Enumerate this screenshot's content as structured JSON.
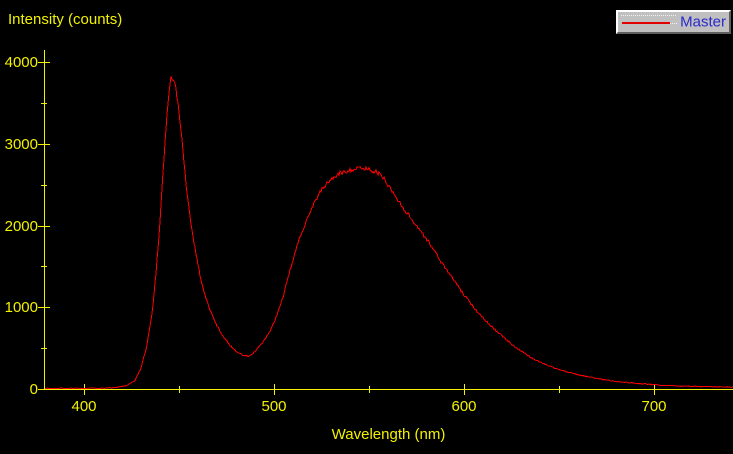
{
  "title": "Intensity (counts)",
  "legend": {
    "series": [
      {
        "label": "Master",
        "color": "#e00000"
      }
    ],
    "position": "top-right"
  },
  "colors": {
    "background": "#000000",
    "axis": "#f2f200",
    "text": "#f2f200",
    "curve": "#ff0000",
    "legend_bg": "#c0c0c0",
    "legend_text": "#2929cc"
  },
  "chart_data": {
    "type": "line",
    "title": "Intensity (counts)",
    "xlabel": "Wavelength (nm)",
    "ylabel": "Intensity (counts)",
    "grid": false,
    "legend_position": "top-right",
    "xlim": [
      379,
      742
    ],
    "ylim": [
      0,
      4100
    ],
    "x_ticks_major": [
      400,
      500,
      600,
      700
    ],
    "x_ticks_minor": [
      450,
      550,
      650
    ],
    "y_ticks_major": [
      0,
      1000,
      2000,
      3000,
      4000
    ],
    "y_ticks_minor": [
      500,
      1500,
      2500,
      3500
    ],
    "series": [
      {
        "name": "Master",
        "color": "#ff0000",
        "points": [
          [
            379,
            8
          ],
          [
            395,
            9
          ],
          [
            405,
            10
          ],
          [
            412,
            13
          ],
          [
            418,
            22
          ],
          [
            423,
            45
          ],
          [
            427,
            110
          ],
          [
            430,
            260
          ],
          [
            433,
            520
          ],
          [
            436,
            950
          ],
          [
            438,
            1450
          ],
          [
            440,
            2050
          ],
          [
            442,
            2800
          ],
          [
            444,
            3450
          ],
          [
            445,
            3700
          ],
          [
            446,
            3820
          ],
          [
            447,
            3800
          ],
          [
            448,
            3720
          ],
          [
            449,
            3550
          ],
          [
            450,
            3400
          ],
          [
            451,
            3150
          ],
          [
            452,
            2950
          ],
          [
            453,
            2700
          ],
          [
            454,
            2450
          ],
          [
            455,
            2250
          ],
          [
            457,
            1920
          ],
          [
            459,
            1650
          ],
          [
            461,
            1400
          ],
          [
            463,
            1200
          ],
          [
            465,
            1050
          ],
          [
            467,
            930
          ],
          [
            469,
            820
          ],
          [
            471,
            730
          ],
          [
            474,
            620
          ],
          [
            477,
            530
          ],
          [
            480,
            465
          ],
          [
            483,
            420
          ],
          [
            485,
            405
          ],
          [
            487,
            403
          ],
          [
            489,
            435
          ],
          [
            491,
            485
          ],
          [
            493,
            540
          ],
          [
            495,
            600
          ],
          [
            497,
            670
          ],
          [
            499,
            760
          ],
          [
            501,
            870
          ],
          [
            503,
            1000
          ],
          [
            505,
            1150
          ],
          [
            507,
            1320
          ],
          [
            509,
            1500
          ],
          [
            511,
            1660
          ],
          [
            513,
            1810
          ],
          [
            515,
            1940
          ],
          [
            517,
            2060
          ],
          [
            519,
            2170
          ],
          [
            521,
            2270
          ],
          [
            523,
            2360
          ],
          [
            525,
            2430
          ],
          [
            527,
            2490
          ],
          [
            529,
            2540
          ],
          [
            531,
            2580
          ],
          [
            533,
            2615
          ],
          [
            535,
            2640
          ],
          [
            538,
            2665
          ],
          [
            541,
            2685
          ],
          [
            544,
            2695
          ],
          [
            547,
            2700
          ],
          [
            550,
            2690
          ],
          [
            553,
            2665
          ],
          [
            556,
            2620
          ],
          [
            559,
            2540
          ],
          [
            561,
            2460
          ],
          [
            563,
            2390
          ],
          [
            565,
            2320
          ],
          [
            567,
            2250
          ],
          [
            569,
            2185
          ],
          [
            571,
            2120
          ],
          [
            573,
            2060
          ],
          [
            575,
            2000
          ],
          [
            577,
            1940
          ],
          [
            579,
            1875
          ],
          [
            581,
            1810
          ],
          [
            583,
            1740
          ],
          [
            585,
            1670
          ],
          [
            587,
            1590
          ],
          [
            589,
            1520
          ],
          [
            591,
            1450
          ],
          [
            593,
            1390
          ],
          [
            595,
            1320
          ],
          [
            597,
            1250
          ],
          [
            599,
            1180
          ],
          [
            601,
            1120
          ],
          [
            603,
            1060
          ],
          [
            605,
            1000
          ],
          [
            607,
            950
          ],
          [
            609,
            900
          ],
          [
            611,
            850
          ],
          [
            613,
            800
          ],
          [
            615,
            755
          ],
          [
            617,
            710
          ],
          [
            619,
            670
          ],
          [
            621,
            630
          ],
          [
            623,
            590
          ],
          [
            625,
            550
          ],
          [
            627,
            515
          ],
          [
            629,
            480
          ],
          [
            631,
            450
          ],
          [
            633,
            420
          ],
          [
            635,
            390
          ],
          [
            637,
            365
          ],
          [
            639,
            340
          ],
          [
            641,
            320
          ],
          [
            643,
            300
          ],
          [
            645,
            280
          ],
          [
            648,
            255
          ],
          [
            651,
            232
          ],
          [
            654,
            210
          ],
          [
            657,
            192
          ],
          [
            660,
            175
          ],
          [
            663,
            160
          ],
          [
            666,
            146
          ],
          [
            669,
            133
          ],
          [
            672,
            121
          ],
          [
            675,
            110
          ],
          [
            678,
            100
          ],
          [
            681,
            92
          ],
          [
            684,
            84
          ],
          [
            687,
            77
          ],
          [
            690,
            71
          ],
          [
            694,
            63
          ],
          [
            698,
            56
          ],
          [
            702,
            50
          ],
          [
            706,
            45
          ],
          [
            710,
            41
          ],
          [
            715,
            36
          ],
          [
            720,
            32
          ],
          [
            725,
            29
          ],
          [
            730,
            27
          ],
          [
            735,
            25
          ],
          [
            742,
            23
          ]
        ]
      }
    ]
  }
}
